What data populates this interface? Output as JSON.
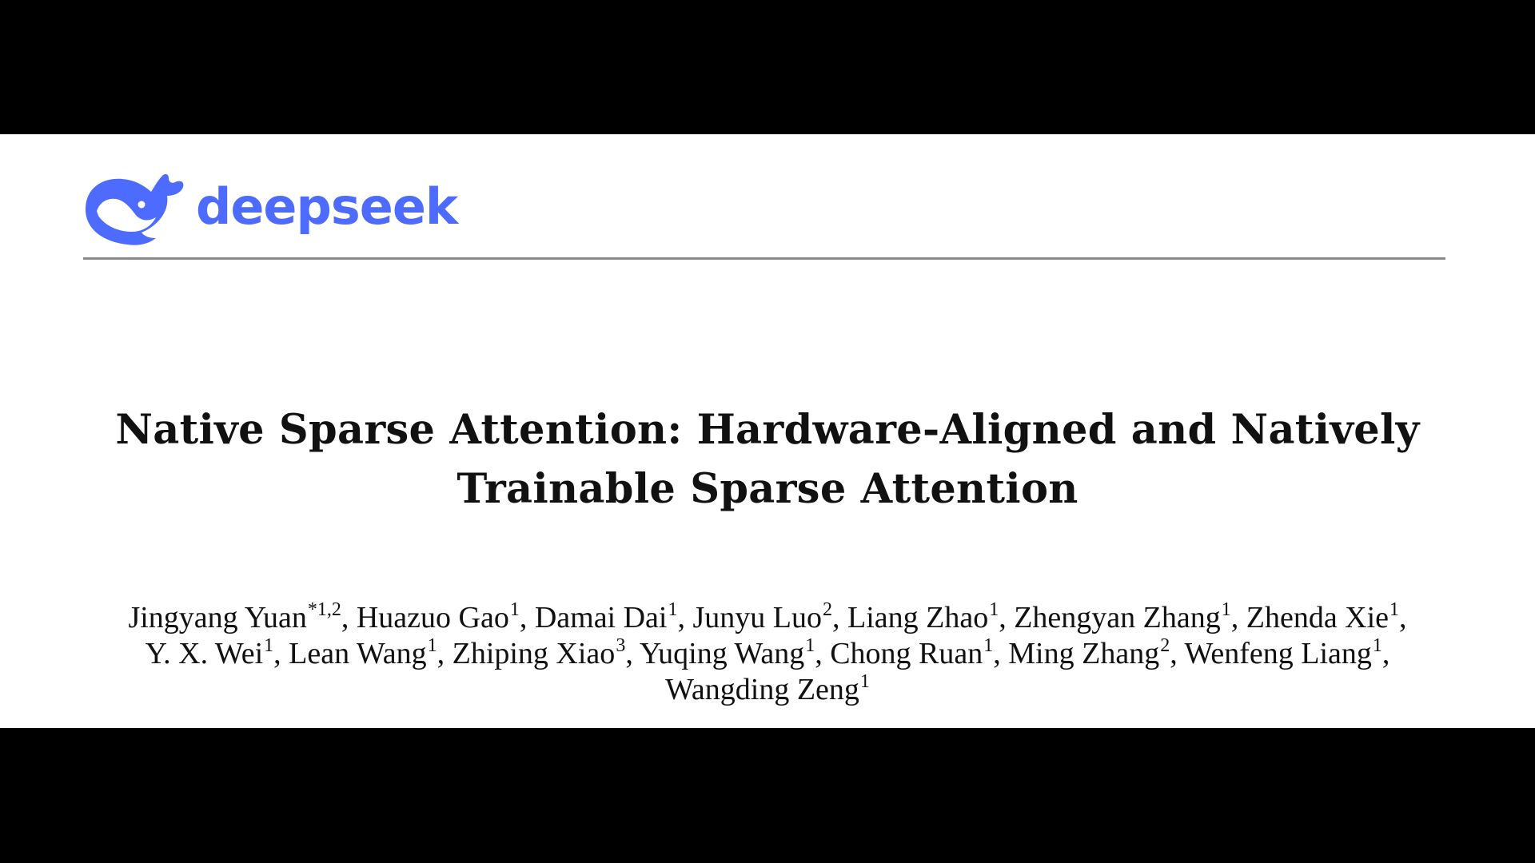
{
  "brand": {
    "name": "deepseek",
    "logo_icon": "whale-icon",
    "color": "#4D6BFE"
  },
  "paper": {
    "title_lines": [
      "Native Sparse Attention: Hardware-Aligned and Natively",
      "Trainable Sparse Attention"
    ],
    "authors": [
      {
        "name": "Jingyang Yuan",
        "sup": "*1,2"
      },
      {
        "name": "Huazuo Gao",
        "sup": "1"
      },
      {
        "name": "Damai Dai",
        "sup": "1"
      },
      {
        "name": "Junyu Luo",
        "sup": "2"
      },
      {
        "name": "Liang Zhao",
        "sup": "1"
      },
      {
        "name": "Zhengyan Zhang",
        "sup": "1"
      },
      {
        "name": "Zhenda Xie",
        "sup": "1"
      },
      {
        "name": "Y. X. Wei",
        "sup": "1"
      },
      {
        "name": "Lean Wang",
        "sup": "1"
      },
      {
        "name": "Zhiping Xiao",
        "sup": "3"
      },
      {
        "name": "Yuqing Wang",
        "sup": "1"
      },
      {
        "name": "Chong Ruan",
        "sup": "1"
      },
      {
        "name": "Ming Zhang",
        "sup": "2"
      },
      {
        "name": "Wenfeng Liang",
        "sup": "1"
      },
      {
        "name": "Wangding Zeng",
        "sup": "1"
      }
    ]
  }
}
